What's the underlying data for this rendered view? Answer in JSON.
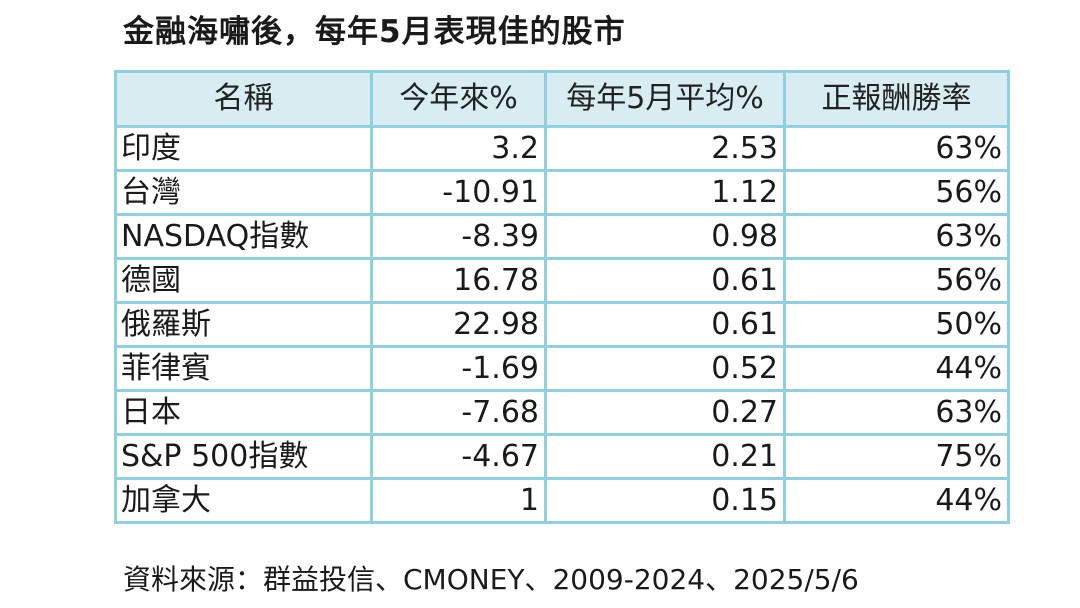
{
  "title": "金融海嘯後，每年5月表現佳的股市",
  "table": {
    "headers": [
      "名稱",
      "今年來%",
      "每年5月平均%",
      "正報酬勝率"
    ],
    "rows": [
      [
        "印度",
        "3.2",
        "2.53",
        "63%"
      ],
      [
        "台灣",
        "-10.91",
        "1.12",
        "56%"
      ],
      [
        "NASDAQ指數",
        "-8.39",
        "0.98",
        "63%"
      ],
      [
        "德國",
        "16.78",
        "0.61",
        "56%"
      ],
      [
        "俄羅斯",
        "22.98",
        "0.61",
        "50%"
      ],
      [
        "菲律賓",
        "-1.69",
        "0.52",
        "44%"
      ],
      [
        "日本",
        "-7.68",
        "0.27",
        "63%"
      ],
      [
        "S&P 500指數",
        "-4.67",
        "0.21",
        "75%"
      ],
      [
        "加拿大",
        "1",
        "0.15",
        "44%"
      ]
    ]
  },
  "source": "資料來源：群益投信、CMONEY、2009-2024、2025/5/6",
  "colors": {
    "border": "#8ed0df",
    "header_background": "#d7edf1",
    "text": "#1a1a1a"
  }
}
